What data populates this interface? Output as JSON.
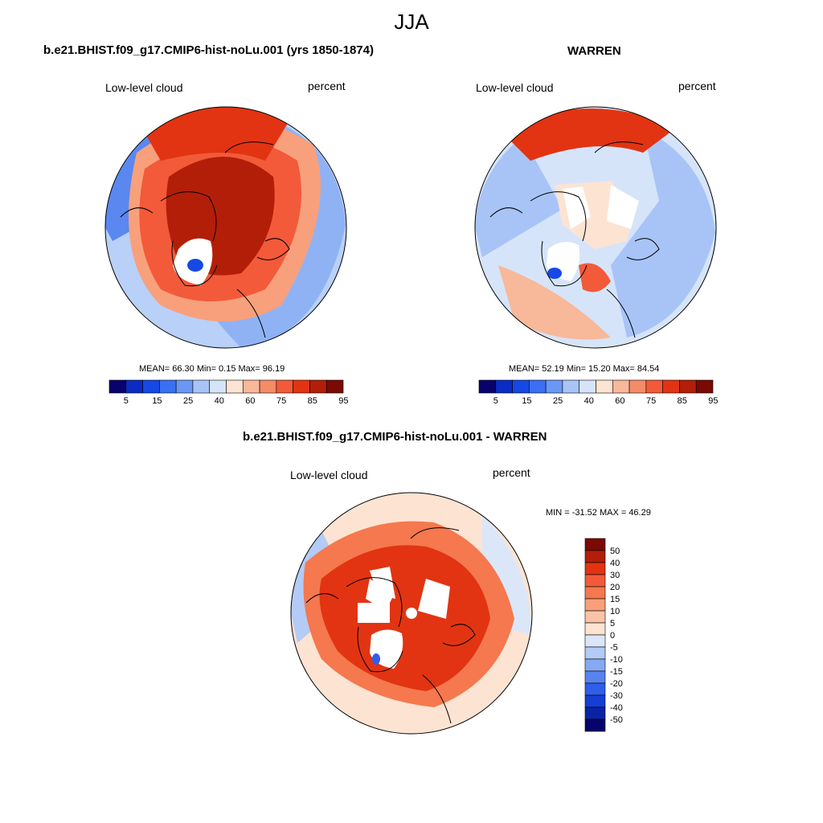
{
  "figure": {
    "title": "JJA"
  },
  "panels": [
    {
      "title": "b.e21.BHIST.f09_g17.CMIP6-hist-noLu.001 (yrs 1850-1874)",
      "left_label": "Low-level cloud",
      "right_label": "percent",
      "stats": "MEAN=  66.30  Min=   0.15  Max=  96.19",
      "mean": 66.3,
      "min": 0.15,
      "max": 96.19
    },
    {
      "title": "WARREN",
      "left_label": "Low-level cloud",
      "right_label": "percent",
      "stats": "MEAN=  52.19  Min=  15.20  Max=  84.54",
      "mean": 52.19,
      "min": 15.2,
      "max": 84.54
    },
    {
      "title": "b.e21.BHIST.f09_g17.CMIP6-hist-noLu.001 - WARREN",
      "left_label": "Low-level cloud",
      "right_label": "percent",
      "stats": "MIN = -31.52 MAX =  46.29",
      "min": -31.52,
      "max": 46.29
    }
  ],
  "colorbar_abs": {
    "labels": [
      "5",
      "15",
      "25",
      "40",
      "60",
      "75",
      "85",
      "95"
    ],
    "colors": [
      "#08036b",
      "#0a2cc4",
      "#1648e6",
      "#3a70f2",
      "#6b98f5",
      "#a8c4f7",
      "#d6e4f9",
      "#fde3d2",
      "#f8b89a",
      "#f58c68",
      "#f25a3a",
      "#e23412",
      "#b31e08",
      "#7a0a03"
    ]
  },
  "colorbar_diff": {
    "labels": [
      "50",
      "40",
      "30",
      "20",
      "15",
      "10",
      "5",
      "0",
      "-5",
      "-10",
      "-15",
      "-20",
      "-30",
      "-40",
      "-50"
    ],
    "colors": [
      "#7a0a03",
      "#b31e08",
      "#e23412",
      "#f25a3a",
      "#f5784e",
      "#f8a07c",
      "#f9c3a8",
      "#fde3d2",
      "#dbe7f9",
      "#b3cbf6",
      "#86a9f4",
      "#5883ef",
      "#2f5eea",
      "#153ed6",
      "#0a23a6",
      "#08036b"
    ]
  },
  "colors": {
    "high": "#b31e08",
    "mid": "#f25a3a",
    "low": "#a8c4f7",
    "coast": "#000000"
  }
}
